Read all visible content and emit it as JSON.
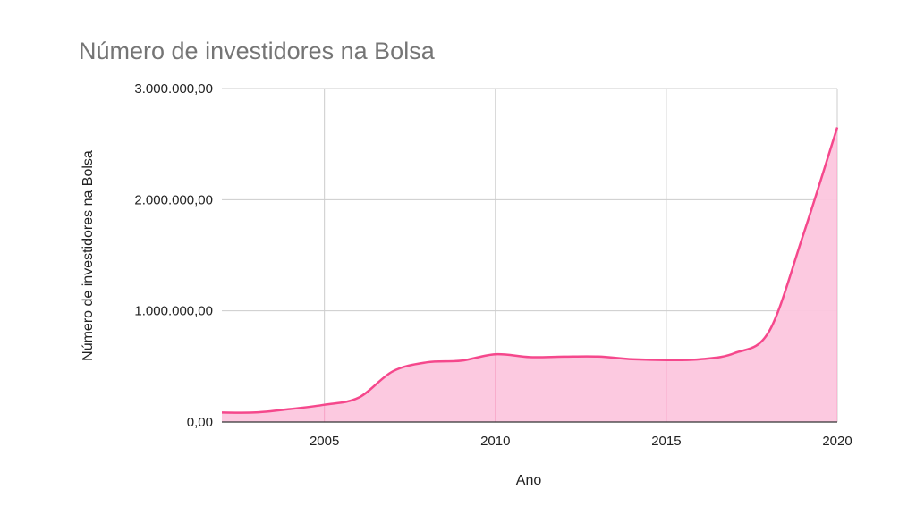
{
  "chart_data": {
    "type": "area",
    "title": "Número de investidores na Bolsa",
    "xlabel": "Ano",
    "ylabel": "Número de investidores na Bolsa",
    "x_ticks": [
      "2005",
      "2010",
      "2015",
      "2020"
    ],
    "y_ticks": [
      "0,00",
      "1.000.000,00",
      "2.000.000,00",
      "3.000.000,00"
    ],
    "xlim": [
      2002,
      2020
    ],
    "ylim": [
      0,
      3000000
    ],
    "grid": true,
    "legend": "none",
    "colors": {
      "line": "#f5488c",
      "fill": "#fcc6de",
      "grid": "#cccccc",
      "baseline": "#333333"
    },
    "series": [
      {
        "x": [
          2002,
          2003,
          2004,
          2005,
          2006,
          2007,
          2008,
          2009,
          2010,
          2011,
          2012,
          2013,
          2014,
          2015,
          2016,
          2017,
          2018,
          2019,
          2020
        ],
        "values": [
          85000,
          86000,
          117000,
          155000,
          219000,
          456000,
          537000,
          552000,
          610000,
          584000,
          588000,
          589000,
          565000,
          557000,
          565000,
          620000,
          813000,
          1680000,
          2650000
        ]
      }
    ]
  }
}
